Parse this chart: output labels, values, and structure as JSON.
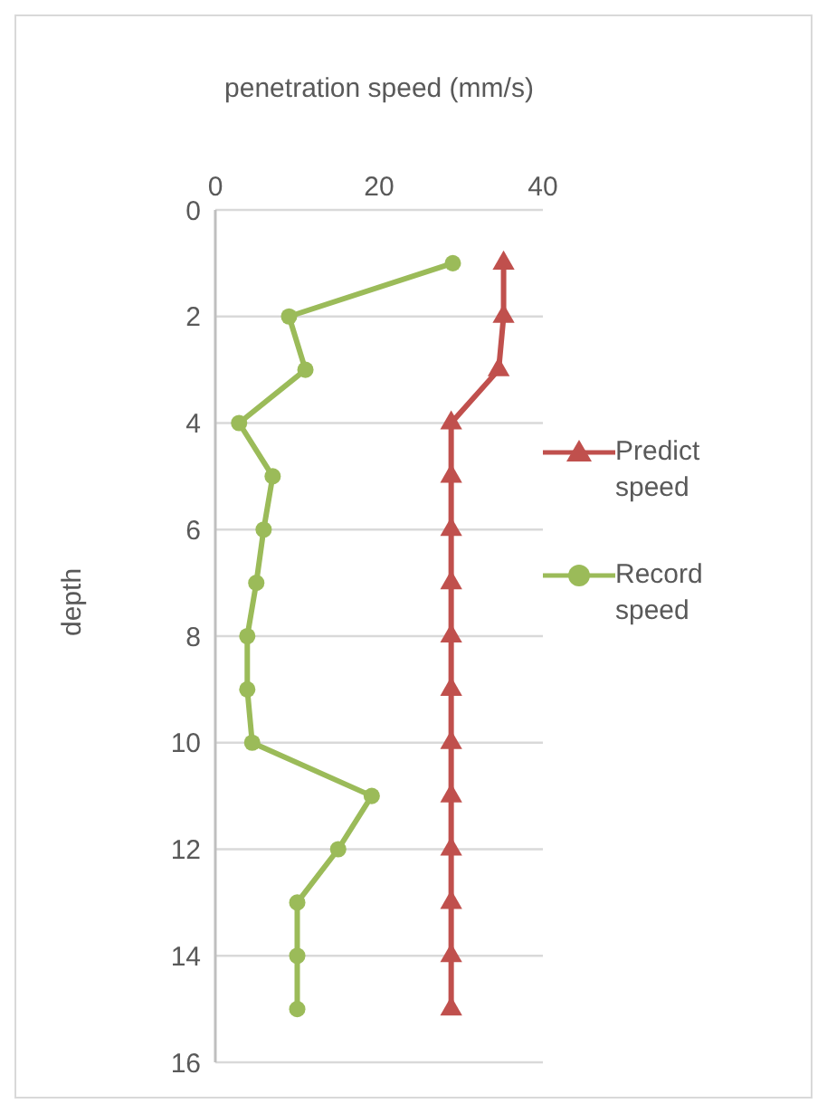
{
  "chart_data": {
    "type": "line",
    "xlabel": "penetration speed  (mm/s)",
    "ylabel": "depth",
    "series": [
      {
        "name": "Predict speed",
        "color": "#c0504d",
        "marker": "triangle",
        "x": [
          35.2,
          35.2,
          34.6,
          28.8,
          28.8,
          28.8,
          28.8,
          28.8,
          28.8,
          28.8,
          28.8,
          28.8,
          28.8,
          28.8,
          28.8
        ],
        "values": [
          1,
          2,
          3,
          4,
          5,
          6,
          7,
          8,
          9,
          10,
          11,
          12,
          13,
          14,
          15
        ]
      },
      {
        "name": "Record speed",
        "color": "#9bbb59",
        "marker": "circle",
        "x": [
          29,
          9,
          11,
          2.9,
          7,
          5.9,
          5,
          3.9,
          3.9,
          4.5,
          19.1,
          15,
          10,
          10,
          10
        ],
        "values": [
          1,
          2,
          3,
          4,
          5,
          6,
          7,
          8,
          9,
          10,
          11,
          12,
          13,
          14,
          15
        ]
      }
    ],
    "xlim": [
      0,
      40
    ],
    "xticks": [
      0,
      20,
      40
    ],
    "ylim": [
      16,
      0
    ],
    "yticks": [
      0,
      2,
      4,
      6,
      8,
      10,
      12,
      14,
      16
    ],
    "grid": "y",
    "legend": "right"
  }
}
